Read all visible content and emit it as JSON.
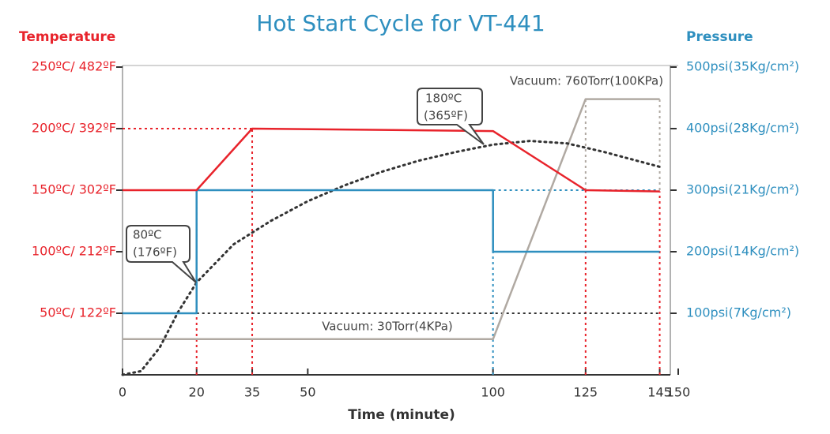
{
  "chart_data": {
    "type": "line",
    "title": "Hot Start Cycle for VT-441",
    "ylabel": "Temperature",
    "y2label": "Pressure",
    "xlabel": "Time (minute)",
    "xlim": [
      0,
      150
    ],
    "xticks": [
      0,
      20,
      35,
      50,
      100,
      125,
      145,
      150
    ],
    "ylim": [
      0,
      250
    ],
    "yticks": [
      {
        "value": 50,
        "label": "50ºC/ 122ºF"
      },
      {
        "value": 100,
        "label": "100ºC/ 212ºF"
      },
      {
        "value": 150,
        "label": "150ºC/ 302ºF"
      },
      {
        "value": 200,
        "label": "200ºC/ 392ºF"
      },
      {
        "value": 250,
        "label": "250ºC/ 482ºF"
      }
    ],
    "y2lim": [
      0,
      500
    ],
    "y2ticks": [
      {
        "value": 100,
        "label": "100psi(7Kg/cm²)"
      },
      {
        "value": 200,
        "label": "200psi(14Kg/cm²)"
      },
      {
        "value": 300,
        "label": "300psi(21Kg/cm²)"
      },
      {
        "value": 400,
        "label": "400psi(28Kg/cm²)"
      },
      {
        "value": 500,
        "label": "500psi(35Kg/cm²)"
      }
    ],
    "series": [
      {
        "color": "#e8232b",
        "style": "solid",
        "axis": "y",
        "x": [
          0,
          20,
          35,
          100,
          125,
          145
        ],
        "values": [
          150,
          150,
          200,
          198,
          150,
          149
        ]
      },
      {
        "color": "#2e8fbf",
        "style": "solid",
        "axis": "y2",
        "x": [
          0,
          20,
          20,
          100,
          100,
          145
        ],
        "values": [
          100,
          100,
          300,
          300,
          200,
          200
        ]
      },
      {
        "color": "#b0a9a2",
        "style": "solid",
        "axis": "y",
        "x": [
          0,
          100,
          125,
          145
        ],
        "values": [
          29,
          29,
          224,
          224
        ]
      },
      {
        "color": "#333333",
        "style": "dotted",
        "axis": "y",
        "x": [
          0,
          5,
          10,
          15,
          20,
          30,
          40,
          50,
          60,
          70,
          80,
          90,
          100,
          110,
          120,
          130,
          145
        ],
        "values": [
          0,
          3,
          22,
          51,
          75,
          106,
          125,
          141,
          154,
          165,
          174,
          181,
          187,
          190,
          188,
          181,
          169
        ]
      }
    ],
    "annotations": [
      {
        "lines": [
          "80ºC",
          "(176ºF)"
        ]
      },
      {
        "lines": [
          "180ºC",
          "(365ºF)"
        ]
      },
      {
        "lines": [
          "Vacuum: 30Torr(4KPa)"
        ]
      },
      {
        "lines": [
          "Vacuum: 760Torr(100KPa)"
        ]
      }
    ]
  }
}
